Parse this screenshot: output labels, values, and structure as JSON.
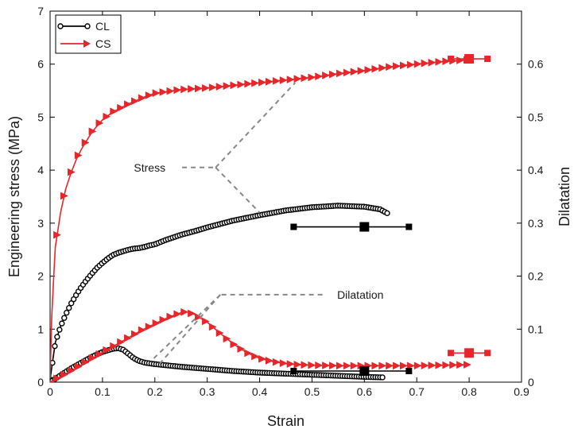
{
  "chart_data": {
    "type": "line",
    "title": "",
    "xlabel": "Strain",
    "ylabel": "Engineering stress (MPa)",
    "y2label": "Dilatation",
    "xlim": [
      0,
      0.9
    ],
    "ylim": [
      0,
      7
    ],
    "y2lim": [
      0,
      0.7
    ],
    "xticks": [
      "0",
      "0.1",
      "0.2",
      "0.3",
      "0.4",
      "0.5",
      "0.6",
      "0.7",
      "0.8",
      "0.9"
    ],
    "yticks": [
      "0",
      "1",
      "2",
      "3",
      "4",
      "5",
      "6",
      "7"
    ],
    "y2ticks": [
      "0",
      "0.1",
      "0.2",
      "0.3",
      "0.4",
      "0.5",
      "0.6"
    ],
    "grid": false,
    "legend_position": "top-left",
    "legend": [
      {
        "name": "CL",
        "color": "#000000",
        "marker": "circle"
      },
      {
        "name": "CS",
        "color": "#e8262a",
        "marker": "triangle-right"
      }
    ],
    "annotations": [
      {
        "text": "Stress",
        "target": "stress curves"
      },
      {
        "text": "Dilatation",
        "target": "dilatation curves"
      }
    ],
    "series": [
      {
        "name": "CL",
        "quantity": "stress",
        "axis": "left",
        "color": "#000000",
        "marker": "circle",
        "x": [
          0,
          0.005,
          0.01,
          0.02,
          0.03,
          0.04,
          0.05,
          0.06,
          0.07,
          0.08,
          0.09,
          0.1,
          0.11,
          0.12,
          0.13,
          0.14,
          0.15,
          0.16,
          0.17,
          0.18,
          0.19,
          0.2,
          0.22,
          0.25,
          0.28,
          0.3,
          0.35,
          0.4,
          0.45,
          0.5,
          0.55,
          0.6,
          0.63,
          0.645
        ],
        "y": [
          0.05,
          0.4,
          0.75,
          1.05,
          1.28,
          1.48,
          1.65,
          1.8,
          1.93,
          2.05,
          2.16,
          2.25,
          2.33,
          2.4,
          2.44,
          2.47,
          2.5,
          2.52,
          2.53,
          2.55,
          2.58,
          2.6,
          2.68,
          2.78,
          2.86,
          2.92,
          3.05,
          3.15,
          3.24,
          3.3,
          3.33,
          3.31,
          3.26,
          3.18
        ]
      },
      {
        "name": "CS",
        "quantity": "stress",
        "axis": "left",
        "color": "#e8262a",
        "marker": "triangle-right",
        "x": [
          0,
          0.003,
          0.007,
          0.01,
          0.02,
          0.03,
          0.04,
          0.05,
          0.06,
          0.08,
          0.1,
          0.12,
          0.15,
          0.18,
          0.2,
          0.25,
          0.3,
          0.35,
          0.4,
          0.45,
          0.5,
          0.55,
          0.6,
          0.65,
          0.7,
          0.75,
          0.8
        ],
        "y": [
          0.05,
          1.2,
          2.0,
          2.55,
          3.2,
          3.65,
          3.95,
          4.2,
          4.4,
          4.72,
          4.95,
          5.1,
          5.25,
          5.38,
          5.45,
          5.52,
          5.55,
          5.6,
          5.65,
          5.7,
          5.75,
          5.82,
          5.88,
          5.95,
          6.0,
          6.05,
          6.08
        ]
      },
      {
        "name": "CL",
        "quantity": "dilatation",
        "axis": "right",
        "color": "#000000",
        "marker": "circle",
        "x": [
          0,
          0.02,
          0.04,
          0.06,
          0.08,
          0.1,
          0.12,
          0.13,
          0.14,
          0.15,
          0.16,
          0.17,
          0.18,
          0.2,
          0.25,
          0.3,
          0.35,
          0.4,
          0.45,
          0.5,
          0.55,
          0.6,
          0.635
        ],
        "y": [
          0,
          0.013,
          0.026,
          0.037,
          0.048,
          0.057,
          0.063,
          0.064,
          0.061,
          0.053,
          0.045,
          0.04,
          0.037,
          0.034,
          0.029,
          0.025,
          0.021,
          0.018,
          0.016,
          0.014,
          0.012,
          0.01,
          0.009
        ]
      },
      {
        "name": "CS",
        "quantity": "dilatation",
        "axis": "right",
        "color": "#e8262a",
        "marker": "triangle-right",
        "x": [
          0,
          0.025,
          0.05,
          0.075,
          0.1,
          0.125,
          0.15,
          0.175,
          0.2,
          0.225,
          0.25,
          0.26,
          0.275,
          0.3,
          0.325,
          0.35,
          0.375,
          0.4,
          0.425,
          0.45,
          0.475,
          0.5,
          0.55,
          0.6,
          0.65,
          0.7,
          0.75,
          0.8
        ],
        "y": [
          0,
          0.013,
          0.027,
          0.042,
          0.056,
          0.07,
          0.084,
          0.098,
          0.11,
          0.122,
          0.131,
          0.133,
          0.128,
          0.113,
          0.092,
          0.072,
          0.056,
          0.045,
          0.039,
          0.035,
          0.033,
          0.032,
          0.031,
          0.031,
          0.031,
          0.031,
          0.032,
          0.033
        ]
      }
    ],
    "error_bars": [
      {
        "series": "CL",
        "axis": "left",
        "x": 0.6,
        "xmin": 0.465,
        "xmax": 0.685,
        "y": 2.93
      },
      {
        "series": "CS",
        "axis": "left",
        "x": 0.8,
        "xmin": 0.765,
        "xmax": 0.835,
        "y": 6.1
      },
      {
        "series": "CL",
        "axis": "right",
        "x": 0.6,
        "xmin": 0.465,
        "xmax": 0.685,
        "y": 0.021
      },
      {
        "series": "CS",
        "axis": "right",
        "x": 0.8,
        "xmin": 0.765,
        "xmax": 0.835,
        "y": 0.055
      }
    ]
  }
}
